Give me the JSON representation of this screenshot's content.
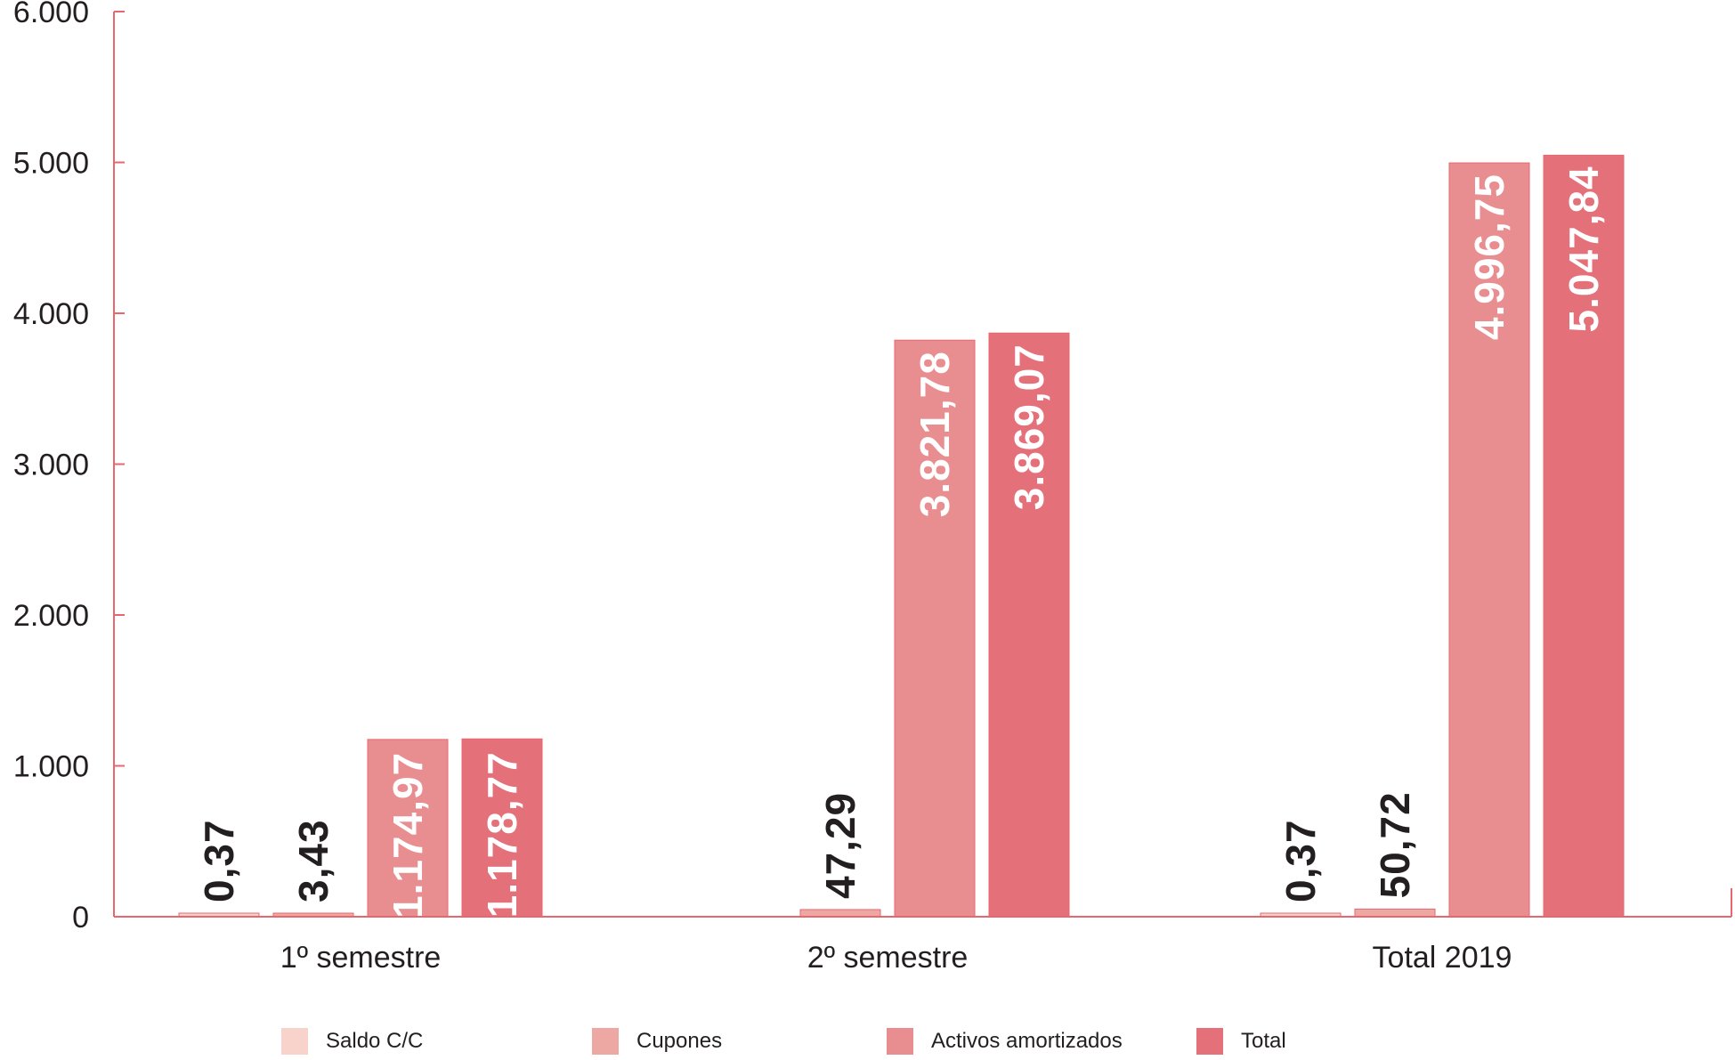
{
  "chart_data": {
    "type": "bar",
    "categories": [
      "1º semestre",
      "2º semestre",
      "Total 2019"
    ],
    "y_tick_labels": [
      "0",
      "1.000",
      "2.000",
      "3.000",
      "4.000",
      "5.000",
      "6.000"
    ],
    "y_ticks": [
      0,
      1000,
      2000,
      3000,
      4000,
      5000,
      6000
    ],
    "ylim": [
      0,
      6000
    ],
    "grid": false,
    "legend_position": "bottom",
    "series": [
      {
        "name": "Saldo C/C",
        "color": "#f8d3cc",
        "values": [
          0.37,
          null,
          0.37
        ],
        "labels": [
          "0,37",
          "",
          "0,37"
        ]
      },
      {
        "name": "Cupones",
        "color": "#eea8a4",
        "values": [
          3.43,
          47.29,
          50.72
        ],
        "labels": [
          "3,43",
          "47,29",
          "50,72"
        ]
      },
      {
        "name": "Activos amortizados",
        "color": "#e98e90",
        "values": [
          1174.97,
          3821.78,
          4996.75
        ],
        "labels": [
          "1.174,97",
          "3.821,78",
          "4.996,75"
        ]
      },
      {
        "name": "Total",
        "color": "#e4717a",
        "values": [
          1178.77,
          3869.07,
          5047.84
        ],
        "labels": [
          "1.178,77",
          "3.869,07",
          "5.047,84"
        ]
      }
    ],
    "axis_color": "#e8676f"
  }
}
